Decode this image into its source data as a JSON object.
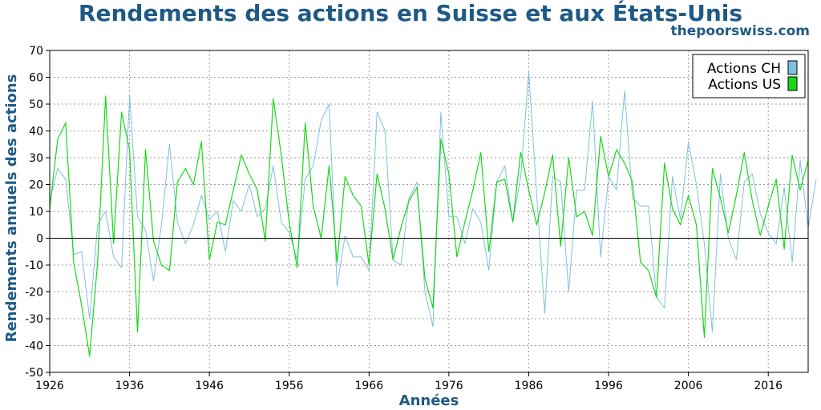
{
  "chart_data": {
    "type": "line",
    "title": "Rendements des actions en Suisse et aux États-Unis",
    "source": "thepoorswiss.com",
    "xlabel": "Années",
    "ylabel": "Rendements annuels des actions",
    "xlim": [
      1926,
      2021
    ],
    "ylim": [
      -50,
      70
    ],
    "x_ticks": [
      1926,
      1936,
      1946,
      1956,
      1966,
      1976,
      1986,
      1996,
      2006,
      2016
    ],
    "y_ticks": [
      -50,
      -40,
      -30,
      -20,
      -10,
      0,
      10,
      20,
      30,
      40,
      50,
      60,
      70
    ],
    "grid": true,
    "legend_position": "top-right",
    "x_start": 1926,
    "series": [
      {
        "name": "Actions CH",
        "color": "#7ec0e0",
        "values": [
          14,
          26,
          22,
          -6,
          -5,
          -30,
          5,
          10,
          -7,
          -11,
          53,
          8,
          3,
          -16,
          5,
          35,
          6,
          -2,
          5,
          16,
          7,
          10,
          -5,
          14,
          10,
          20,
          8,
          11,
          27,
          6,
          2,
          -8,
          22,
          27,
          44,
          50,
          -18,
          1,
          -7,
          -7,
          -12,
          47,
          40,
          -8,
          -10,
          15,
          21,
          -20,
          -33,
          47,
          8,
          8,
          -2,
          11,
          6,
          -12,
          21,
          27,
          6,
          23,
          62,
          16,
          -28,
          23,
          21,
          -20,
          18,
          18,
          51,
          -7,
          23,
          18,
          55,
          15,
          12,
          12,
          -22,
          -26,
          23,
          7,
          36,
          20,
          -2,
          -35,
          24,
          0,
          -8,
          21,
          24,
          9,
          2,
          -2,
          19,
          -9,
          29,
          4,
          22
        ]
      },
      {
        "name": "Actions US",
        "color": "#16d916",
        "values": [
          11,
          37,
          43,
          -9,
          -25,
          -44,
          -9,
          53,
          -2,
          47,
          33,
          -35,
          33,
          -1,
          -10,
          -12,
          21,
          26,
          20,
          36,
          -8,
          6,
          5,
          18,
          31,
          24,
          18,
          -1,
          52,
          31,
          6,
          -11,
          43,
          12,
          0,
          27,
          -9,
          23,
          16,
          12,
          -10,
          24,
          11,
          -8,
          4,
          14,
          19,
          -15,
          -26,
          37,
          24,
          -7,
          6,
          18,
          32,
          -5,
          21,
          22,
          6,
          32,
          18,
          5,
          17,
          31,
          -3,
          30,
          8,
          10,
          1,
          38,
          23,
          33,
          28,
          21,
          -9,
          -12,
          -22,
          28,
          11,
          5,
          16,
          5,
          -37,
          26,
          15,
          2,
          16,
          32,
          14,
          1,
          12,
          22,
          -4,
          31,
          18,
          29
        ]
      }
    ]
  }
}
